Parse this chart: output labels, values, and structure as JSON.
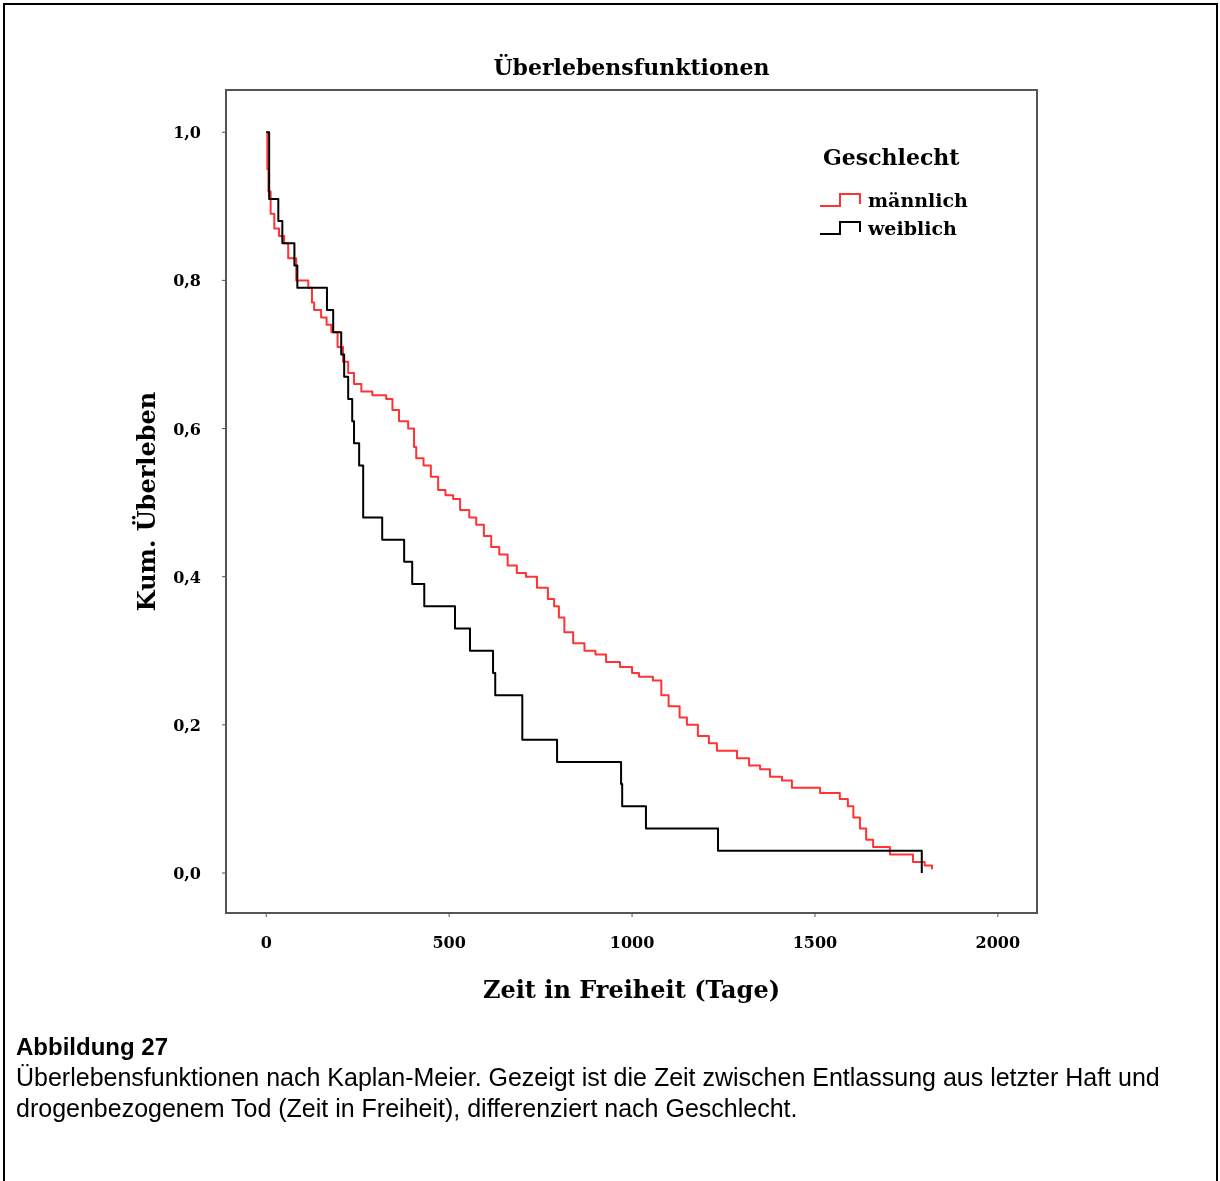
{
  "chart_data": {
    "type": "step",
    "title": "Überlebensfunktionen",
    "xlabel": "Zeit in Freiheit (Tage)",
    "ylabel": "Kum. Überleben",
    "legend_title": "Geschlecht",
    "legend": "top right",
    "grid": false,
    "marker": "none",
    "line_style": "solid",
    "xlim": [
      -110,
      2107
    ],
    "ylim": [
      -0.054,
      1.057
    ],
    "xticks": [
      0,
      500,
      1000,
      1500,
      2000
    ],
    "yticks": [
      {
        "value": 0,
        "label": "0,0"
      },
      {
        "value": 0.2,
        "label": "0,2"
      },
      {
        "value": 0.4,
        "label": "0,4"
      },
      {
        "value": 0.6,
        "label": "0,6"
      },
      {
        "value": 0.8,
        "label": "0,8"
      },
      {
        "value": 1,
        "label": "1,0"
      }
    ],
    "series": [
      {
        "name": "männlich",
        "color": "#ff3333",
        "x": [
          0,
          3,
          6,
          12,
          22,
          35,
          49,
          60,
          82,
          115,
          125,
          131,
          150,
          165,
          178,
          195,
          210,
          224,
          240,
          260,
          290,
          328,
          345,
          363,
          388,
          404,
          410,
          430,
          450,
          470,
          490,
          511,
          530,
          555,
          574,
          595,
          615,
          637,
          660,
          685,
          710,
          740,
          770,
          787,
          800,
          815,
          839,
          870,
          900,
          929,
          967,
          1000,
          1019,
          1057,
          1080,
          1100,
          1130,
          1150,
          1180,
          1210,
          1232,
          1287,
          1320,
          1350,
          1377,
          1410,
          1437,
          1514,
          1568,
          1590,
          1605,
          1623,
          1640,
          1659,
          1705,
          1768,
          1800,
          1820
        ],
        "values": [
          1,
          0.95,
          0.92,
          0.89,
          0.87,
          0.86,
          0.85,
          0.83,
          0.8,
          0.79,
          0.77,
          0.76,
          0.75,
          0.74,
          0.73,
          0.71,
          0.69,
          0.675,
          0.66,
          0.65,
          0.645,
          0.64,
          0.625,
          0.61,
          0.6,
          0.575,
          0.56,
          0.55,
          0.535,
          0.517,
          0.51,
          0.505,
          0.49,
          0.48,
          0.47,
          0.455,
          0.44,
          0.43,
          0.415,
          0.405,
          0.4,
          0.385,
          0.37,
          0.36,
          0.345,
          0.325,
          0.31,
          0.3,
          0.295,
          0.285,
          0.278,
          0.27,
          0.265,
          0.26,
          0.24,
          0.225,
          0.21,
          0.2,
          0.185,
          0.175,
          0.165,
          0.155,
          0.145,
          0.14,
          0.13,
          0.125,
          0.115,
          0.108,
          0.1,
          0.09,
          0.075,
          0.06,
          0.045,
          0.035,
          0.025,
          0.015,
          0.01,
          0.005
        ]
      },
      {
        "name": "weiblich",
        "color": "#000000",
        "x": [
          0,
          8,
          33,
          44,
          77,
          85,
          166,
          183,
          205,
          213,
          224,
          235,
          240,
          254,
          265,
          317,
          377,
          399,
          432,
          516,
          557,
          620,
          626,
          700,
          795,
          970,
          973,
          1038,
          1235,
          1792
        ],
        "values": [
          1,
          0.91,
          0.88,
          0.85,
          0.82,
          0.79,
          0.76,
          0.73,
          0.7,
          0.67,
          0.64,
          0.61,
          0.58,
          0.55,
          0.48,
          0.45,
          0.42,
          0.39,
          0.36,
          0.33,
          0.3,
          0.27,
          0.24,
          0.18,
          0.15,
          0.12,
          0.09,
          0.06,
          0.03,
          0
        ]
      }
    ],
    "annotations": [
      "Abbildung 27",
      "Überlebensfunktionen nach Kaplan-Meier. Gezeigt ist die Zeit zwischen Entlassung aus letzter Haft und drogenbezogenem Tod (Zeit in Freiheit), differenziert nach Geschlecht."
    ]
  }
}
